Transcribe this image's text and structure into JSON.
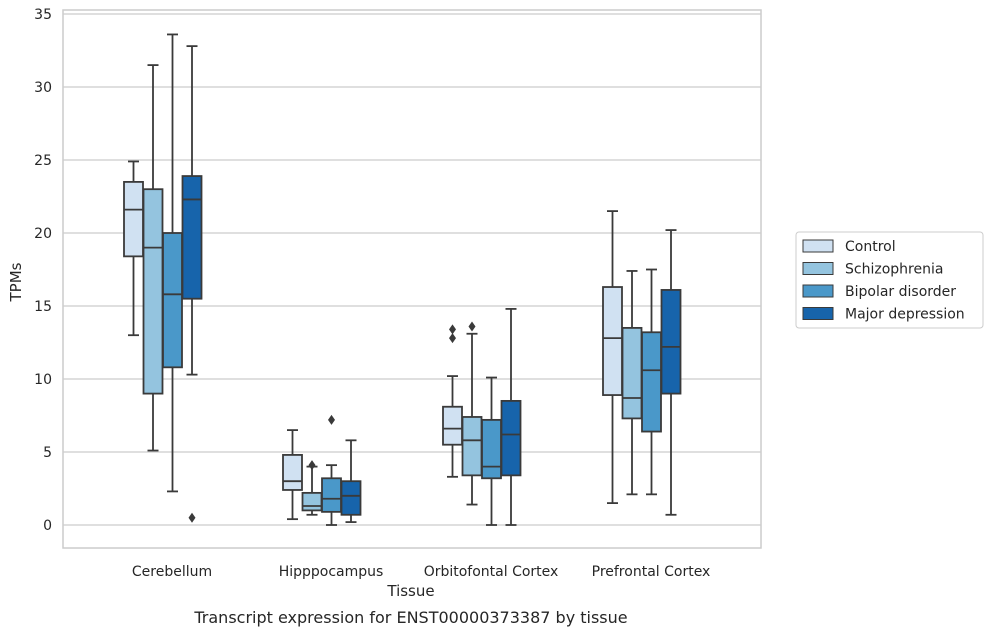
{
  "chart_data": {
    "type": "box",
    "caption": "Transcript expression for ENST00000373387 by tissue",
    "xlabel": "Tissue",
    "ylabel": "TPMs",
    "ylim": [
      -1.5,
      35.5
    ],
    "yticks": [
      0,
      5,
      10,
      15,
      20,
      25,
      30,
      35
    ],
    "grid": "horizontal",
    "legend_position": "right",
    "categories": [
      "Cerebellum",
      "Hipppocampus",
      "Orbitofontal Cortex",
      "Prefrontal Cortex"
    ],
    "series": [
      {
        "name": "Control",
        "color": "#d0e1f2",
        "boxes": [
          {
            "min": 13.0,
            "q1": 18.4,
            "median": 21.6,
            "q3": 23.5,
            "max": 24.9,
            "outliers": []
          },
          {
            "min": 0.4,
            "q1": 2.4,
            "median": 3.0,
            "q3": 4.8,
            "max": 6.5,
            "outliers": []
          },
          {
            "min": 3.3,
            "q1": 5.5,
            "median": 6.6,
            "q3": 8.1,
            "max": 10.2,
            "outliers": [
              12.8,
              13.4
            ]
          },
          {
            "min": 1.5,
            "q1": 8.9,
            "median": 12.8,
            "q3": 16.3,
            "max": 21.5,
            "outliers": []
          }
        ]
      },
      {
        "name": "Schizophrenia",
        "color": "#94c4df",
        "boxes": [
          {
            "min": 5.1,
            "q1": 9.0,
            "median": 19.0,
            "q3": 23.0,
            "max": 31.5,
            "outliers": []
          },
          {
            "min": 0.7,
            "q1": 1.0,
            "median": 1.3,
            "q3": 2.2,
            "max": 4.0,
            "outliers": [
              4.1
            ]
          },
          {
            "min": 1.4,
            "q1": 3.4,
            "median": 5.8,
            "q3": 7.4,
            "max": 13.1,
            "outliers": [
              13.6
            ]
          },
          {
            "min": 2.1,
            "q1": 7.3,
            "median": 8.7,
            "q3": 13.5,
            "max": 17.4,
            "outliers": []
          }
        ]
      },
      {
        "name": "Bipolar disorder",
        "color": "#4a98c9",
        "boxes": [
          {
            "min": 2.3,
            "q1": 10.8,
            "median": 15.8,
            "q3": 20.0,
            "max": 33.6,
            "outliers": []
          },
          {
            "min": 0.0,
            "q1": 0.9,
            "median": 1.8,
            "q3": 3.2,
            "max": 4.1,
            "outliers": [
              7.2
            ]
          },
          {
            "min": 0.0,
            "q1": 3.2,
            "median": 4.0,
            "q3": 7.2,
            "max": 10.1,
            "outliers": []
          },
          {
            "min": 2.1,
            "q1": 6.4,
            "median": 10.6,
            "q3": 13.2,
            "max": 17.5,
            "outliers": []
          }
        ]
      },
      {
        "name": "Major depression",
        "color": "#1764ab",
        "boxes": [
          {
            "min": 10.3,
            "q1": 15.5,
            "median": 22.3,
            "q3": 23.9,
            "max": 32.8,
            "outliers": [
              0.5
            ]
          },
          {
            "min": 0.2,
            "q1": 0.7,
            "median": 2.0,
            "q3": 3.0,
            "max": 5.8,
            "outliers": []
          },
          {
            "min": 0.0,
            "q1": 3.4,
            "median": 6.2,
            "q3": 8.5,
            "max": 14.8,
            "outliers": []
          },
          {
            "min": 0.7,
            "q1": 9.0,
            "median": 12.2,
            "q3": 16.1,
            "max": 20.2,
            "outliers": []
          }
        ]
      }
    ]
  }
}
